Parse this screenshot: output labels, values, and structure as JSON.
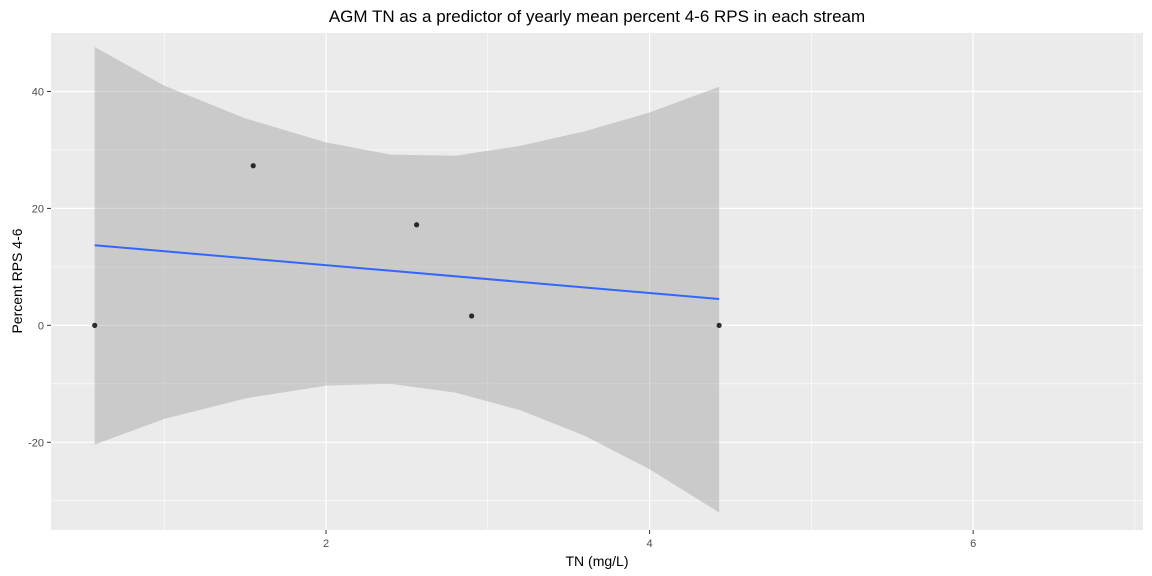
{
  "chart_data": {
    "type": "scatter",
    "title": "AGM TN as a predictor of yearly mean percent 4-6 RPS in each stream",
    "xlabel": "TN (mg/L)",
    "ylabel": "Percent RPS 4-6",
    "xlim": [
      0.3,
      7.05
    ],
    "ylim": [
      -35,
      50
    ],
    "x_ticks": [
      2,
      4,
      6
    ],
    "x_minor_ticks": [
      1,
      3,
      5,
      7
    ],
    "y_ticks": [
      -20,
      0,
      20,
      40
    ],
    "y_minor_ticks": [
      -30,
      -10,
      10,
      30
    ],
    "grid": true,
    "legend": "none",
    "points": [
      {
        "x": 0.57,
        "y": 0
      },
      {
        "x": 1.55,
        "y": 27.3
      },
      {
        "x": 2.56,
        "y": 17.2
      },
      {
        "x": 2.9,
        "y": 1.6
      },
      {
        "x": 4.43,
        "y": 0
      }
    ],
    "fit": {
      "method": "linear",
      "x": [
        0.57,
        4.43
      ],
      "y": [
        13.7,
        4.5
      ],
      "x_bar": 2.402,
      "ci_upper": [
        {
          "x": 0.57,
          "y": 47.6
        },
        {
          "x": 1.0,
          "y": 41.0
        },
        {
          "x": 1.5,
          "y": 35.4
        },
        {
          "x": 2.0,
          "y": 31.3
        },
        {
          "x": 2.4,
          "y": 29.2
        },
        {
          "x": 2.8,
          "y": 29.0
        },
        {
          "x": 3.2,
          "y": 30.7
        },
        {
          "x": 3.6,
          "y": 33.2
        },
        {
          "x": 4.0,
          "y": 36.4
        },
        {
          "x": 4.43,
          "y": 40.8
        }
      ],
      "ci_lower": [
        {
          "x": 0.57,
          "y": -20.4
        },
        {
          "x": 1.0,
          "y": -16.0
        },
        {
          "x": 1.5,
          "y": -12.5
        },
        {
          "x": 2.0,
          "y": -10.3
        },
        {
          "x": 2.4,
          "y": -10.0
        },
        {
          "x": 2.8,
          "y": -11.5
        },
        {
          "x": 3.2,
          "y": -14.5
        },
        {
          "x": 3.6,
          "y": -18.9
        },
        {
          "x": 4.0,
          "y": -24.6
        },
        {
          "x": 4.43,
          "y": -32.0
        }
      ]
    },
    "colors": {
      "panel": "#ebebeb",
      "grid": "#ffffff",
      "line": "#3366ff",
      "ribbon": "#999999",
      "point": "#000000"
    }
  }
}
